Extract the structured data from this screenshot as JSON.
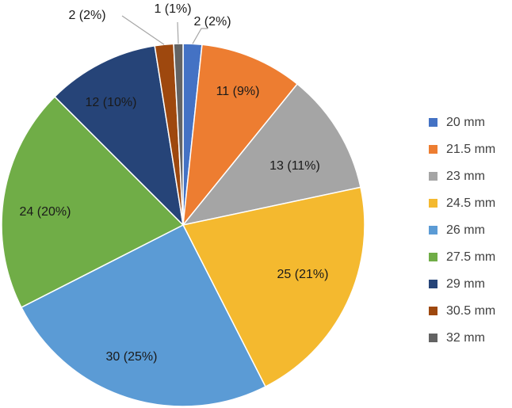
{
  "chart_data": {
    "type": "pie",
    "title": "",
    "categories": [
      "20 mm",
      "21.5 mm",
      "23 mm",
      "24.5 mm",
      "26 mm",
      "27.5 mm",
      "29 mm",
      "30.5 mm",
      "32 mm"
    ],
    "values": [
      2,
      11,
      13,
      25,
      30,
      24,
      12,
      2,
      1
    ],
    "labels": [
      "2 (2%)",
      "11 (9%)",
      "13 (11%)",
      "25 (21%)",
      "30 (25%)",
      "24 (20%)",
      "12 (10%)",
      "2 (2%)",
      "1 (1%)"
    ],
    "colors": [
      "#4472c4",
      "#ed7d31",
      "#a5a5a5",
      "#f4b92f",
      "#5b9bd5",
      "#70ad47",
      "#264478",
      "#9e480e",
      "#636363"
    ],
    "legend": "right",
    "start": "12 o'clock, clockwise"
  }
}
